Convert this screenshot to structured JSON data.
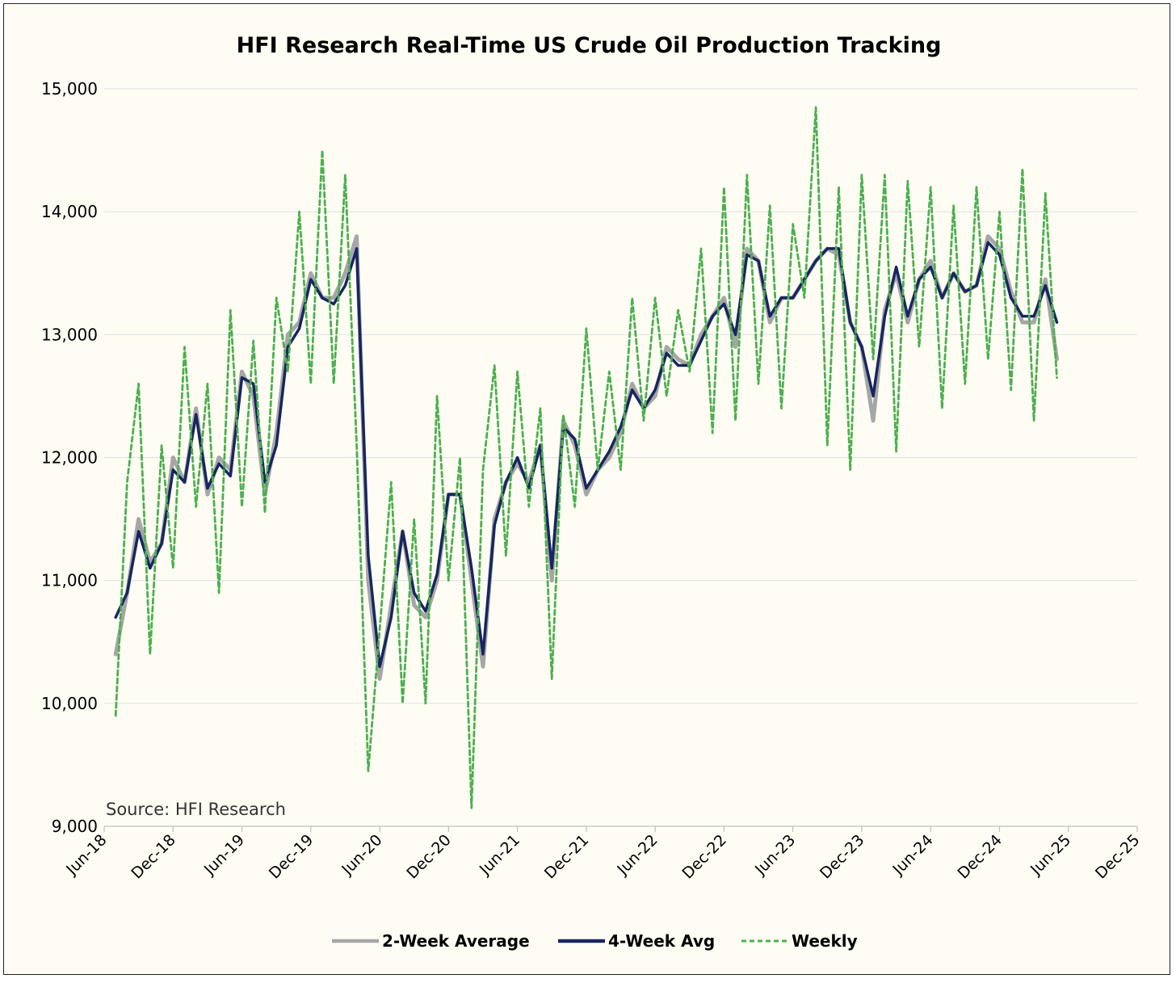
{
  "chart_data": {
    "type": "line",
    "title": "HFI Research Real-Time US Crude Oil Production Tracking",
    "source": "Source: HFI Research",
    "xlabel": "",
    "ylabel": "",
    "ylim": [
      9000,
      15000
    ],
    "xlim": [
      "2018-06-01",
      "2025-12-01"
    ],
    "x_ticks": [
      "Jun-18",
      "Dec-18",
      "Jun-19",
      "Dec-19",
      "Jun-20",
      "Dec-20",
      "Jun-21",
      "Dec-21",
      "Jun-22",
      "Dec-22",
      "Jun-23",
      "Dec-23",
      "Jun-24",
      "Dec-24",
      "Jun-25",
      "Dec-25"
    ],
    "y_ticks": [
      9000,
      10000,
      11000,
      12000,
      13000,
      14000,
      15000
    ],
    "y_tick_labels": [
      "9,000",
      "10,000",
      "11,000",
      "12,000",
      "13,000",
      "14,000",
      "15,000"
    ],
    "grid": true,
    "legend_position": "bottom",
    "series": [
      {
        "name": "2-Week Average",
        "color": "#a6a6a6",
        "style": "solid",
        "x": [
          "2018-07",
          "2018-08",
          "2018-09",
          "2018-10",
          "2018-11",
          "2018-12",
          "2019-01",
          "2019-02",
          "2019-03",
          "2019-04",
          "2019-05",
          "2019-06",
          "2019-07",
          "2019-08",
          "2019-09",
          "2019-10",
          "2019-11",
          "2019-12",
          "2020-01",
          "2020-02",
          "2020-03",
          "2020-04",
          "2020-05",
          "2020-06",
          "2020-07",
          "2020-08",
          "2020-09",
          "2020-10",
          "2020-11",
          "2020-12",
          "2021-01",
          "2021-02",
          "2021-03",
          "2021-04",
          "2021-05",
          "2021-06",
          "2021-07",
          "2021-08",
          "2021-09",
          "2021-10",
          "2021-11",
          "2021-12",
          "2022-01",
          "2022-02",
          "2022-03",
          "2022-04",
          "2022-05",
          "2022-06",
          "2022-07",
          "2022-08",
          "2022-09",
          "2022-10",
          "2022-11",
          "2022-12",
          "2023-01",
          "2023-02",
          "2023-03",
          "2023-04",
          "2023-05",
          "2023-06",
          "2023-07",
          "2023-08",
          "2023-09",
          "2023-10",
          "2023-11",
          "2023-12",
          "2024-01",
          "2024-02",
          "2024-03",
          "2024-04",
          "2024-05",
          "2024-06",
          "2024-07",
          "2024-08",
          "2024-09",
          "2024-10",
          "2024-11",
          "2024-12",
          "2025-01",
          "2025-02",
          "2025-03",
          "2025-04",
          "2025-05"
        ],
        "values": [
          10400,
          10900,
          11500,
          11150,
          11300,
          12000,
          11800,
          12400,
          11700,
          12000,
          11900,
          12700,
          12500,
          11700,
          12200,
          13000,
          13100,
          13500,
          13300,
          13300,
          13500,
          13800,
          11000,
          10200,
          10800,
          11400,
          10800,
          10700,
          11000,
          11700,
          11700,
          11000,
          10300,
          11500,
          11800,
          11950,
          11800,
          12100,
          11000,
          12300,
          12100,
          11700,
          11900,
          12000,
          12200,
          12600,
          12400,
          12500,
          12900,
          12800,
          12750,
          13000,
          13150,
          13300,
          12900,
          13700,
          13600,
          13100,
          13300,
          13300,
          13450,
          13600,
          13700,
          13650,
          13100,
          12900,
          12300,
          13200,
          13500,
          13100,
          13450,
          13600,
          13300,
          13500,
          13350,
          13400,
          13800,
          13700,
          13350,
          13100,
          13100,
          13450,
          12800
        ]
      },
      {
        "name": "4-Week Avg",
        "color": "#162660",
        "style": "solid",
        "x": [
          "2018-07",
          "2018-08",
          "2018-09",
          "2018-10",
          "2018-11",
          "2018-12",
          "2019-01",
          "2019-02",
          "2019-03",
          "2019-04",
          "2019-05",
          "2019-06",
          "2019-07",
          "2019-08",
          "2019-09",
          "2019-10",
          "2019-11",
          "2019-12",
          "2020-01",
          "2020-02",
          "2020-03",
          "2020-04",
          "2020-05",
          "2020-06",
          "2020-07",
          "2020-08",
          "2020-09",
          "2020-10",
          "2020-11",
          "2020-12",
          "2021-01",
          "2021-02",
          "2021-03",
          "2021-04",
          "2021-05",
          "2021-06",
          "2021-07",
          "2021-08",
          "2021-09",
          "2021-10",
          "2021-11",
          "2021-12",
          "2022-01",
          "2022-02",
          "2022-03",
          "2022-04",
          "2022-05",
          "2022-06",
          "2022-07",
          "2022-08",
          "2022-09",
          "2022-10",
          "2022-11",
          "2022-12",
          "2023-01",
          "2023-02",
          "2023-03",
          "2023-04",
          "2023-05",
          "2023-06",
          "2023-07",
          "2023-08",
          "2023-09",
          "2023-10",
          "2023-11",
          "2023-12",
          "2024-01",
          "2024-02",
          "2024-03",
          "2024-04",
          "2024-05",
          "2024-06",
          "2024-07",
          "2024-08",
          "2024-09",
          "2024-10",
          "2024-11",
          "2024-12",
          "2025-01",
          "2025-02",
          "2025-03",
          "2025-04",
          "2025-05"
        ],
        "values": [
          10700,
          10900,
          11400,
          11100,
          11300,
          11900,
          11800,
          12350,
          11750,
          11950,
          11850,
          12650,
          12600,
          11800,
          12100,
          12900,
          13050,
          13450,
          13300,
          13250,
          13400,
          13700,
          11200,
          10300,
          10700,
          11400,
          10900,
          10750,
          11050,
          11700,
          11700,
          11100,
          10400,
          11450,
          11800,
          12000,
          11750,
          12100,
          11100,
          12250,
          12150,
          11750,
          11900,
          12050,
          12250,
          12550,
          12400,
          12550,
          12850,
          12750,
          12750,
          12950,
          13150,
          13250,
          13000,
          13650,
          13600,
          13150,
          13300,
          13300,
          13450,
          13600,
          13700,
          13700,
          13100,
          12900,
          12500,
          13150,
          13550,
          13150,
          13450,
          13550,
          13300,
          13500,
          13350,
          13400,
          13750,
          13650,
          13300,
          13150,
          13150,
          13400,
          13100
        ]
      },
      {
        "name": "Weekly",
        "color": "#4caf50",
        "style": "dashed",
        "x": [
          "2018-07",
          "2018-08",
          "2018-09",
          "2018-10",
          "2018-11",
          "2018-12",
          "2019-01",
          "2019-02",
          "2019-03",
          "2019-04",
          "2019-05",
          "2019-06",
          "2019-07",
          "2019-08",
          "2019-09",
          "2019-10",
          "2019-11",
          "2019-12",
          "2020-01",
          "2020-02",
          "2020-03",
          "2020-04",
          "2020-05",
          "2020-06",
          "2020-07",
          "2020-08",
          "2020-09",
          "2020-10",
          "2020-11",
          "2020-12",
          "2021-01",
          "2021-02",
          "2021-03",
          "2021-04",
          "2021-05",
          "2021-06",
          "2021-07",
          "2021-08",
          "2021-09",
          "2021-10",
          "2021-11",
          "2021-12",
          "2022-01",
          "2022-02",
          "2022-03",
          "2022-04",
          "2022-05",
          "2022-06",
          "2022-07",
          "2022-08",
          "2022-09",
          "2022-10",
          "2022-11",
          "2022-12",
          "2023-01",
          "2023-02",
          "2023-03",
          "2023-04",
          "2023-05",
          "2023-06",
          "2023-07",
          "2023-08",
          "2023-09",
          "2023-10",
          "2023-11",
          "2023-12",
          "2024-01",
          "2024-02",
          "2024-03",
          "2024-04",
          "2024-05",
          "2024-06",
          "2024-07",
          "2024-08",
          "2024-09",
          "2024-10",
          "2024-11",
          "2024-12",
          "2025-01",
          "2025-02",
          "2025-03",
          "2025-04",
          "2025-05"
        ],
        "values": [
          9900,
          11800,
          12600,
          10400,
          12100,
          11100,
          12900,
          11600,
          12600,
          10900,
          13200,
          11600,
          12950,
          11550,
          13300,
          12700,
          14000,
          12600,
          14500,
          12600,
          14300,
          12100,
          9450,
          10600,
          11800,
          10000,
          11500,
          10000,
          12500,
          11000,
          12000,
          9150,
          11900,
          12750,
          11200,
          12700,
          11600,
          12400,
          10200,
          12350,
          11600,
          13050,
          11900,
          12700,
          11900,
          13300,
          12300,
          13300,
          12500,
          13200,
          12700,
          13700,
          12200,
          14200,
          12300,
          14300,
          12600,
          14050,
          12400,
          13900,
          13300,
          14850,
          12100,
          14200,
          11900,
          14300,
          12800,
          14300,
          12050,
          14250,
          12900,
          14200,
          12400,
          14050,
          12600,
          14200,
          12800,
          14000,
          12550,
          14350,
          12300,
          14150,
          12650
        ]
      }
    ]
  }
}
